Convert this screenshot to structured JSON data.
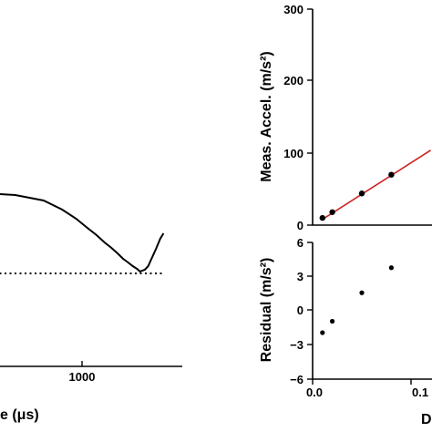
{
  "colors": {
    "fit_line": "#cc2222",
    "ink": "#000000",
    "background": "#ffffff"
  },
  "chart_data": [
    {
      "type": "line",
      "panel": "left",
      "xscale": "log",
      "xlabel_visible": "e (μs)",
      "xticks": [
        {
          "value": 1000,
          "label": "1000"
        }
      ],
      "series": [
        {
          "style": "solid",
          "x": [
            100,
            300,
            500,
            700,
            900,
            1100,
            1300,
            1500,
            1700,
            1900,
            2100,
            2300,
            2500,
            2700,
            2850,
            2950,
            3100,
            3300,
            3500,
            3800,
            4100,
            4350
          ],
          "y": [
            0.9,
            0.86,
            0.8,
            0.7,
            0.6,
            0.5,
            0.42,
            0.34,
            0.28,
            0.22,
            0.16,
            0.12,
            0.08,
            0.05,
            0.02,
            0.03,
            0.04,
            0.08,
            0.16,
            0.27,
            0.38,
            0.44
          ]
        },
        {
          "style": "dotted",
          "x": [
            100,
            4350
          ],
          "y": [
            0.0,
            0.0
          ]
        }
      ]
    },
    {
      "type": "scatter",
      "panel": "top-right",
      "ylabel": "Meas. Accel. (m/s²)",
      "ylim": [
        0,
        300
      ],
      "yticks": [
        "0",
        "100",
        "200",
        "300"
      ],
      "xlim": [
        0,
        0.12
      ],
      "points": {
        "x": [
          0.01,
          0.02,
          0.05,
          0.08
        ],
        "y": [
          10,
          18,
          44,
          70
        ]
      },
      "fit_line": {
        "x": [
          0.01,
          0.12
        ],
        "y": [
          8,
          104
        ]
      }
    },
    {
      "type": "scatter",
      "panel": "bottom-right",
      "ylabel": "Residual (m/s²)",
      "ylim": [
        -6,
        6
      ],
      "yticks": [
        "−6",
        "−3",
        "0",
        "3",
        "6"
      ],
      "xlim": [
        0,
        0.12
      ],
      "xticks": [
        "0.0",
        "0.1"
      ],
      "xlabel_visible": "D",
      "points": {
        "x": [
          0.01,
          0.02,
          0.05,
          0.08
        ],
        "y": [
          -2,
          -1,
          1.5,
          3.7
        ]
      }
    }
  ]
}
